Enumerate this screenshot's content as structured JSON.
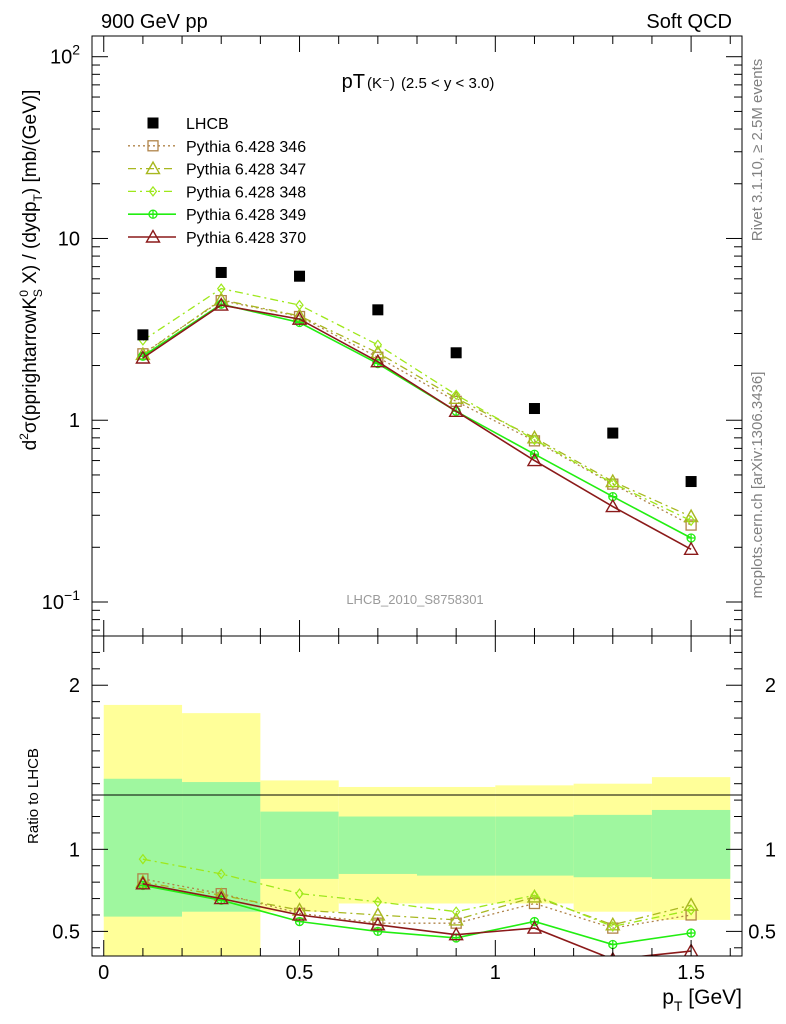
{
  "header": {
    "left": "900 GeV pp",
    "right": "Soft QCD"
  },
  "side_labels": {
    "top": "Rivet 3.1.10, ≥ 2.5M events",
    "bottom": "mcplots.cern.ch [arXiv:1306.3436]"
  },
  "colors": {
    "data": "#000000",
    "p346": "#b0844a",
    "p347": "#a8b820",
    "p348": "#9ee81a",
    "p349": "#22ee11",
    "p370": "#8b1a1a",
    "band_inner": "#9ff79f",
    "band_outer": "#ffff99"
  },
  "chart_data": [
    {
      "type": "scatter",
      "panel": "main",
      "title": "pT(K⁻) (2.5 < y < 3.0)",
      "title_main": "pT",
      "title_particle": "(K⁻)",
      "title_range": "(2.5 < y < 3.0)",
      "ylabel": "d²σ(pprightarrowK⁰S X) / (dydpT) [mb/(GeV)]",
      "ylabel_parts": [
        "d",
        "2",
        "σ(pprightarrowK",
        "0",
        "S",
        " X) / (dydp",
        "T",
        ") [mb/(GeV)]"
      ],
      "yscale": "log",
      "ylim": [
        0.065,
        130
      ],
      "xlim": [
        -0.03,
        1.63
      ],
      "y_tick_labels": [
        {
          "value": 0.1,
          "base": "10",
          "exp": "−1"
        },
        {
          "value": 1,
          "text": "1"
        },
        {
          "value": 10,
          "text": "10"
        },
        {
          "value": 100,
          "base": "10",
          "exp": "2"
        }
      ],
      "watermark": "LHCB_2010_S8758301",
      "x": [
        0.1,
        0.3,
        0.5,
        0.7,
        0.9,
        1.1,
        1.3,
        1.5
      ],
      "series": [
        {
          "name": "LHCB",
          "key": "data",
          "style": "square",
          "values": [
            2.95,
            6.5,
            6.2,
            4.05,
            2.35,
            1.16,
            0.85,
            0.46
          ]
        },
        {
          "name": "Pythia 6.428 346",
          "key": "p346",
          "style": "dotted-square",
          "values": [
            2.32,
            4.55,
            3.72,
            2.22,
            1.27,
            0.77,
            0.445,
            0.265
          ]
        },
        {
          "name": "Pythia 6.428 347",
          "key": "p347",
          "style": "dashdot-triangle",
          "values": [
            2.3,
            4.6,
            3.75,
            2.35,
            1.32,
            0.8,
            0.46,
            0.295
          ]
        },
        {
          "name": "Pythia 6.428 348",
          "key": "p348",
          "style": "dashdot-diamond",
          "values": [
            2.75,
            5.3,
            4.3,
            2.6,
            1.38,
            0.78,
            0.45,
            0.28
          ]
        },
        {
          "name": "Pythia 6.428 349",
          "key": "p349",
          "style": "solid-cross",
          "values": [
            2.25,
            4.35,
            3.45,
            2.05,
            1.12,
            0.65,
            0.38,
            0.225
          ]
        },
        {
          "name": "Pythia 6.428 370",
          "key": "p370",
          "style": "solid-triangle",
          "values": [
            2.2,
            4.3,
            3.6,
            2.1,
            1.12,
            0.6,
            0.335,
            0.195
          ]
        }
      ]
    },
    {
      "type": "line",
      "panel": "ratio",
      "ylabel": "Ratio to LHCB",
      "xlabel": "pT [GeV]",
      "xlabel_parts": [
        "p",
        "T",
        " [GeV]"
      ],
      "ylim": [
        0.35,
        2.3
      ],
      "xlim": [
        -0.03,
        1.63
      ],
      "y_tick_labels": [
        0.5,
        1,
        2
      ],
      "x_tick_labels": [
        {
          "value": 0,
          "text": "0"
        },
        {
          "value": 0.5,
          "text": "0.5"
        },
        {
          "value": 1,
          "text": "1"
        },
        {
          "value": 1.5,
          "text": "1.5"
        }
      ],
      "bins": [
        [
          0,
          0.2
        ],
        [
          0.2,
          0.4
        ],
        [
          0.4,
          0.6
        ],
        [
          0.6,
          0.8
        ],
        [
          0.8,
          1.0
        ],
        [
          1.0,
          1.2
        ],
        [
          1.2,
          1.4
        ],
        [
          1.4,
          1.6
        ]
      ],
      "band_outer_low": [
        0.35,
        0.35,
        0.62,
        0.67,
        0.67,
        0.67,
        0.62,
        0.57
      ],
      "band_outer_high": [
        1.88,
        1.83,
        1.42,
        1.38,
        1.38,
        1.39,
        1.4,
        1.44
      ],
      "band_inner_low": [
        0.59,
        0.62,
        0.82,
        0.85,
        0.84,
        0.84,
        0.83,
        0.82
      ],
      "band_inner_high": [
        1.43,
        1.41,
        1.23,
        1.2,
        1.2,
        1.2,
        1.21,
        1.24
      ],
      "x": [
        0.1,
        0.3,
        0.5,
        0.7,
        0.9,
        1.1,
        1.3,
        1.5
      ],
      "series": [
        {
          "name": "Pythia 6.428 346",
          "key": "p346",
          "style": "dotted-square",
          "values": [
            0.82,
            0.73,
            0.61,
            0.55,
            0.55,
            0.67,
            0.52,
            0.6
          ]
        },
        {
          "name": "Pythia 6.428 347",
          "key": "p347",
          "style": "dashdot-triangle",
          "values": [
            0.8,
            0.72,
            0.63,
            0.6,
            0.57,
            0.71,
            0.54,
            0.66
          ]
        },
        {
          "name": "Pythia 6.428 348",
          "key": "p348",
          "style": "dashdot-diamond",
          "values": [
            0.94,
            0.85,
            0.73,
            0.68,
            0.62,
            0.72,
            0.53,
            0.63
          ]
        },
        {
          "name": "Pythia 6.428 349",
          "key": "p349",
          "style": "solid-cross",
          "values": [
            0.78,
            0.69,
            0.56,
            0.5,
            0.46,
            0.56,
            0.42,
            0.49
          ]
        },
        {
          "name": "Pythia 6.428 370",
          "key": "p370",
          "style": "solid-triangle",
          "values": [
            0.79,
            0.7,
            0.6,
            0.54,
            0.48,
            0.52,
            0.33,
            0.38
          ]
        }
      ]
    }
  ]
}
